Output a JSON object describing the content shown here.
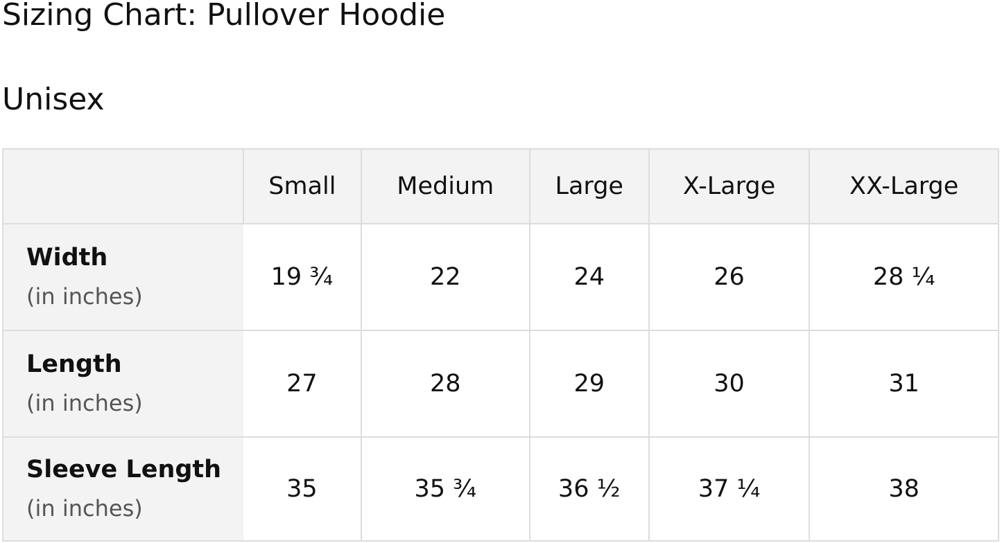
{
  "title": "Sizing Chart: Pullover Hoodie",
  "subtitle": "Unisex",
  "table": {
    "columns": [
      "",
      "Small",
      "Medium",
      "Large",
      "X-Large",
      "XX-Large"
    ],
    "rows": [
      {
        "label": "Width",
        "unit": "(in inches)",
        "values": [
          "19 ¾",
          "22",
          "24",
          "26",
          "28 ¼"
        ]
      },
      {
        "label": "Length",
        "unit": "(in inches)",
        "values": [
          "27",
          "28",
          "29",
          "30",
          "31"
        ]
      },
      {
        "label": "Sleeve Length",
        "unit": "(in inches)",
        "values": [
          "35",
          "35 ¾",
          "36 ½",
          "37 ¼",
          "38"
        ]
      }
    ]
  }
}
